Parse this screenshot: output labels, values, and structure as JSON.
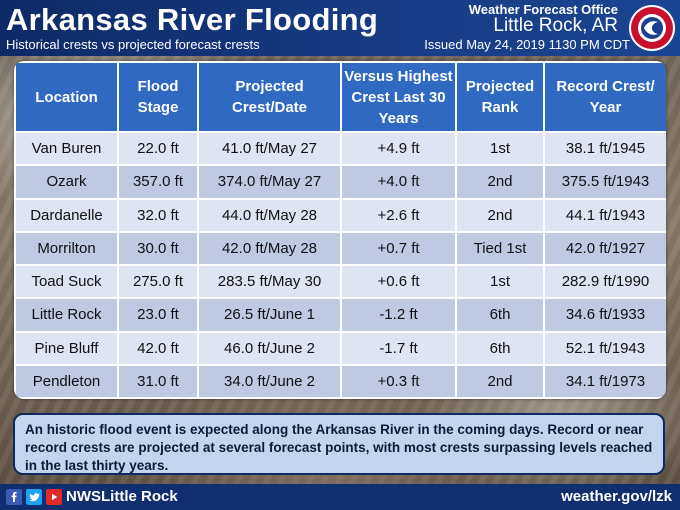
{
  "header": {
    "title": "Arkansas River Flooding",
    "subtitle": "Historical crests vs projected forecast crests",
    "office": "Weather Forecast Office",
    "city": "Little Rock, AR",
    "issued": "Issued May 24, 2019 1130 PM CDT",
    "logo_text": "NATIONAL WEATHER SERVICE"
  },
  "table": {
    "headers": [
      "Location",
      "Flood Stage",
      "Projected Crest/Date",
      "Versus Highest Crest Last 30 Years",
      "Projected Rank",
      "Record Crest/ Year"
    ],
    "rows": [
      [
        "Van Buren",
        "22.0 ft",
        "41.0 ft/May 27",
        "+4.9 ft",
        "1st",
        "38.1 ft/1945"
      ],
      [
        "Ozark",
        "357.0 ft",
        "374.0 ft/May 27",
        "+4.0 ft",
        "2nd",
        "375.5 ft/1943"
      ],
      [
        "Dardanelle",
        "32.0 ft",
        "44.0 ft/May 28",
        "+2.6 ft",
        "2nd",
        "44.1 ft/1943"
      ],
      [
        "Morrilton",
        "30.0 ft",
        "42.0 ft/May 28",
        "+0.7 ft",
        "Tied 1st",
        "42.0 ft/1927"
      ],
      [
        "Toad Suck",
        "275.0 ft",
        "283.5 ft/May 30",
        "+0.6 ft",
        "1st",
        "282.9 ft/1990"
      ],
      [
        "Little Rock",
        "23.0 ft",
        "26.5 ft/June 1",
        "-1.2 ft",
        "6th",
        "34.6 ft/1933"
      ],
      [
        "Pine Bluff",
        "42.0 ft",
        "46.0 ft/June 2",
        "-1.7 ft",
        "6th",
        "52.1 ft/1943"
      ],
      [
        "Pendleton",
        "31.0 ft",
        "34.0 ft/June 2",
        "+0.3 ft",
        "2nd",
        "34.1 ft/1973"
      ]
    ]
  },
  "note": "An historic flood event is expected along the Arkansas River in the coming days. Record or near record crests are projected at several forecast points, with most crests surpassing levels reached in the last thirty years.",
  "footer": {
    "handle": "NWSLittle Rock",
    "website": "weather.gov/lzk"
  },
  "icons": [
    "facebook-icon",
    "twitter-icon",
    "youtube-icon",
    "nws-logo"
  ],
  "colors": {
    "header_bar": "#173d86",
    "table_header": "#2f69c1",
    "row_light": "#dfe4f2",
    "row_dark": "#bfc9e2",
    "note_bg": "#c4d4ee"
  }
}
